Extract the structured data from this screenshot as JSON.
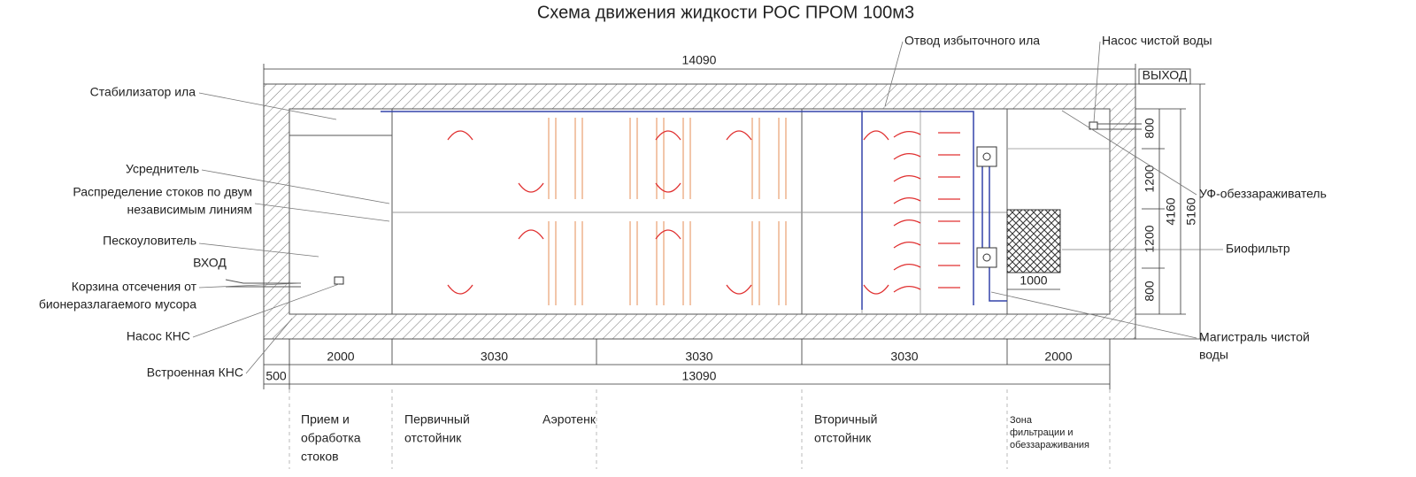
{
  "title": "Схема движения жидкости РОС ПРОМ 100м3",
  "dimensions": {
    "overall_length": 14090,
    "inner_length": 13090,
    "wall": 500,
    "sections": [
      2000,
      3030,
      3030,
      3030,
      2000
    ],
    "rows": [
      800,
      1200,
      1200,
      800
    ],
    "inner_width": 4160,
    "overall_width": 5160,
    "biofilter": 1000
  },
  "labels": {
    "sludge_stabilizer": "Стабилизатор ила",
    "equalizer": "Усреднитель",
    "distribution": [
      "Распределение стоков по двум",
      "независимым линиям"
    ],
    "sand_trap": "Пескоуловитель",
    "inlet": "ВХОД",
    "basket": [
      "Корзина отсечения от",
      "бионеразлагаемого мусора"
    ],
    "kns_pump": "Насос КНС",
    "built_in_kns": "Встроенная КНС",
    "excess_sludge": "Отвод избыточного ила",
    "clean_water_pump": "Насос чистой воды",
    "outlet": "ВЫХОД",
    "uv": "УФ-обеззараживатель",
    "biofilter": "Биофильтр",
    "clean_water_main": [
      "Магистраль чистой",
      "воды"
    ]
  },
  "zones": [
    [
      "Прием и",
      "обработка",
      "стоков"
    ],
    [
      "Первичный",
      "отстойник"
    ],
    [
      "Аэротенк"
    ],
    [
      "Вторичный",
      "отстойник"
    ],
    [
      "Зона",
      "фильтрации и",
      "обеззараживания"
    ]
  ]
}
